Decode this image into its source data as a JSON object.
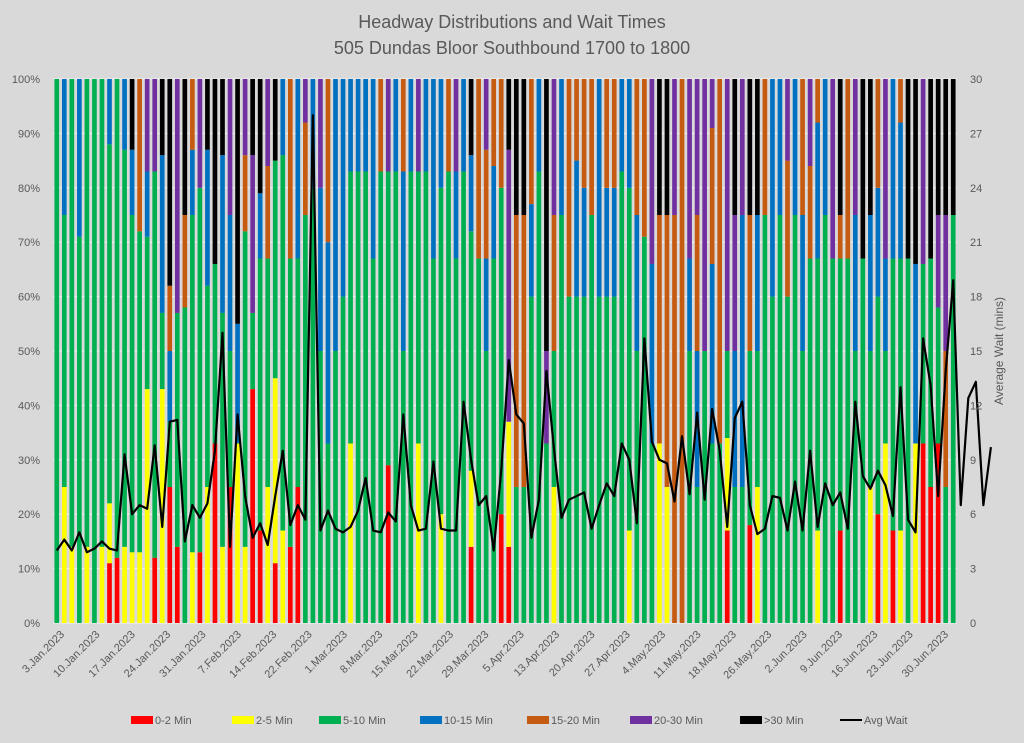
{
  "chart_data": {
    "type": "bar",
    "subtype": "stacked-100-percent-with-line-overlay",
    "title": "Headway Distributions and Wait Times",
    "subtitle": "505 Dundas  Bloor Southbound 1700 to 1800",
    "ylabel_left": "",
    "ylabel_right": "Average Wait (mins)",
    "ylim_left": [
      0,
      100
    ],
    "ylim_right": [
      0,
      30
    ],
    "yticks_left": [
      "0%",
      "10%",
      "20%",
      "30%",
      "40%",
      "50%",
      "60%",
      "70%",
      "80%",
      "90%",
      "100%"
    ],
    "yticks_right": [
      "0",
      "3",
      "6",
      "9",
      "12",
      "15",
      "18",
      "21",
      "24",
      "27",
      "30"
    ],
    "xtick_labels": [
      "3.Jan.2023",
      "10.Jan.2023",
      "17.Jan.2023",
      "24.Jan.2023",
      "31.Jan.2023",
      "7.Feb.2023",
      "14.Feb.2023",
      "22.Feb.2023",
      "1.Mar.2023",
      "8.Mar.2023",
      "15.Mar.2023",
      "22.Mar.2023",
      "29.Mar.2023",
      "5.Apr.2023",
      "13.Apr.2023",
      "20.Apr.2023",
      "27.Apr.2023",
      "4.May.2023",
      "11.May.2023",
      "18.May.2023",
      "26.May.2023",
      "2.Jun.2023",
      "9.Jun.2023",
      "16.Jun.2023",
      "23.Jun.2023",
      "30.Jun.2023"
    ],
    "grid": true,
    "legend_position": "bottom",
    "series_names": [
      "0-2 Min",
      "2-5 Min",
      "5-10 Min",
      "10-15 Min",
      "15-20 Min",
      "20-30 Min",
      ">30 Min"
    ],
    "series_colors": [
      "#ff0000",
      "#ffff00",
      "#00b050",
      "#0070c0",
      "#c55a11",
      "#7030a0",
      "#000000"
    ],
    "line_series": {
      "name": "Avg Wait",
      "color": "#000000"
    },
    "bars": [
      [
        0,
        0,
        100,
        0,
        0,
        0,
        0
      ],
      [
        0,
        25,
        50,
        25,
        0,
        0,
        0
      ],
      [
        0,
        14,
        86,
        0,
        0,
        0,
        0
      ],
      [
        0,
        0,
        71,
        29,
        0,
        0,
        0
      ],
      [
        0,
        14,
        86,
        0,
        0,
        0,
        0
      ],
      [
        0,
        0,
        100,
        0,
        0,
        0,
        0
      ],
      [
        0,
        14,
        86,
        0,
        0,
        0,
        0
      ],
      [
        11,
        11,
        66,
        12,
        0,
        0,
        0
      ],
      [
        12,
        0,
        88,
        0,
        0,
        0,
        0
      ],
      [
        0,
        14,
        73,
        13,
        0,
        0,
        0
      ],
      [
        0,
        13,
        62,
        12,
        0,
        0,
        13
      ],
      [
        0,
        13,
        59,
        0,
        28,
        0,
        0
      ],
      [
        0,
        43,
        28,
        12,
        0,
        17,
        0
      ],
      [
        12,
        0,
        71,
        0,
        0,
        17,
        0
      ],
      [
        0,
        43,
        14,
        29,
        0,
        0,
        14
      ],
      [
        25,
        0,
        12,
        13,
        12,
        0,
        38
      ],
      [
        14,
        0,
        43,
        0,
        0,
        43,
        0
      ],
      [
        0,
        0,
        58,
        0,
        17,
        0,
        25
      ],
      [
        0,
        13,
        62,
        12,
        13,
        0,
        0
      ],
      [
        13,
        0,
        67,
        0,
        0,
        20,
        0
      ],
      [
        0,
        25,
        37,
        25,
        0,
        0,
        13
      ],
      [
        33,
        0,
        33,
        0,
        0,
        0,
        34
      ],
      [
        0,
        14,
        43,
        29,
        0,
        0,
        14
      ],
      [
        25,
        0,
        25,
        25,
        0,
        25,
        0
      ],
      [
        0,
        33,
        0,
        22,
        0,
        0,
        45
      ],
      [
        0,
        14,
        58,
        0,
        14,
        14,
        0
      ],
      [
        43,
        0,
        14,
        0,
        0,
        29,
        14
      ],
      [
        17,
        0,
        50,
        12,
        0,
        0,
        21
      ],
      [
        0,
        25,
        42,
        0,
        17,
        16,
        0
      ],
      [
        11,
        34,
        40,
        0,
        0,
        0,
        15
      ],
      [
        0,
        17,
        69,
        14,
        0,
        0,
        0
      ],
      [
        14,
        0,
        53,
        0,
        33,
        0,
        0
      ],
      [
        25,
        0,
        42,
        33,
        0,
        0,
        0
      ],
      [
        0,
        0,
        75,
        0,
        17,
        8,
        0
      ],
      [
        0,
        0,
        80,
        20,
        0,
        0,
        0
      ],
      [
        0,
        0,
        50,
        30,
        0,
        20,
        0
      ],
      [
        0,
        0,
        33,
        37,
        30,
        0,
        0
      ],
      [
        0,
        0,
        50,
        50,
        0,
        0,
        0
      ],
      [
        0,
        0,
        60,
        40,
        0,
        0,
        0
      ],
      [
        0,
        33,
        50,
        17,
        0,
        0,
        0
      ],
      [
        0,
        0,
        83,
        17,
        0,
        0,
        0
      ],
      [
        0,
        0,
        83,
        17,
        0,
        0,
        0
      ],
      [
        0,
        0,
        67,
        33,
        0,
        0,
        0
      ],
      [
        0,
        0,
        83,
        0,
        17,
        0,
        0
      ],
      [
        29,
        0,
        54,
        0,
        0,
        17,
        0
      ],
      [
        0,
        0,
        83,
        17,
        0,
        0,
        0
      ],
      [
        0,
        0,
        50,
        33,
        17,
        0,
        0
      ],
      [
        0,
        0,
        83,
        17,
        0,
        0,
        0
      ],
      [
        0,
        33,
        50,
        0,
        0,
        17,
        0
      ],
      [
        0,
        0,
        83,
        17,
        0,
        0,
        0
      ],
      [
        0,
        0,
        67,
        33,
        0,
        0,
        0
      ],
      [
        0,
        20,
        60,
        20,
        0,
        0,
        0
      ],
      [
        0,
        0,
        83,
        0,
        17,
        0,
        0
      ],
      [
        0,
        0,
        67,
        16,
        0,
        17,
        0
      ],
      [
        0,
        0,
        83,
        17,
        0,
        0,
        0
      ],
      [
        14,
        14,
        44,
        14,
        0,
        0,
        14
      ],
      [
        0,
        0,
        67,
        0,
        33,
        0,
        0
      ],
      [
        0,
        0,
        50,
        17,
        20,
        13,
        0
      ],
      [
        0,
        0,
        67,
        17,
        16,
        0,
        0
      ],
      [
        20,
        0,
        60,
        0,
        20,
        0,
        0
      ],
      [
        14,
        23,
        0,
        0,
        0,
        50,
        13
      ],
      [
        0,
        0,
        25,
        0,
        50,
        0,
        25
      ],
      [
        0,
        0,
        25,
        0,
        50,
        0,
        25
      ],
      [
        0,
        0,
        60,
        17,
        23,
        0,
        0
      ],
      [
        0,
        0,
        83,
        17,
        0,
        0,
        0
      ],
      [
        0,
        0,
        33,
        0,
        0,
        17,
        50
      ],
      [
        0,
        25,
        25,
        0,
        25,
        25,
        0
      ],
      [
        0,
        0,
        75,
        25,
        0,
        0,
        0
      ],
      [
        0,
        0,
        60,
        0,
        40,
        0,
        0
      ],
      [
        0,
        0,
        60,
        25,
        15,
        0,
        0
      ],
      [
        0,
        0,
        60,
        20,
        20,
        0,
        0
      ],
      [
        0,
        0,
        75,
        0,
        25,
        0,
        0
      ],
      [
        0,
        0,
        60,
        40,
        0,
        0,
        0
      ],
      [
        0,
        0,
        60,
        20,
        20,
        0,
        0
      ],
      [
        0,
        0,
        60,
        20,
        20,
        0,
        0
      ],
      [
        0,
        0,
        83,
        17,
        0,
        0,
        0
      ],
      [
        0,
        17,
        63,
        20,
        0,
        0,
        0
      ],
      [
        0,
        0,
        50,
        25,
        25,
        0,
        0
      ],
      [
        0,
        0,
        71,
        0,
        29,
        0,
        0
      ],
      [
        0,
        0,
        33,
        33,
        0,
        34,
        0
      ],
      [
        0,
        33,
        0,
        0,
        42,
        0,
        25
      ],
      [
        0,
        25,
        0,
        0,
        50,
        0,
        25
      ],
      [
        0,
        0,
        0,
        0,
        75,
        25,
        0
      ],
      [
        0,
        0,
        0,
        0,
        100,
        0,
        0
      ],
      [
        0,
        0,
        50,
        17,
        0,
        33,
        0
      ],
      [
        0,
        0,
        25,
        25,
        25,
        25,
        0
      ],
      [
        0,
        0,
        50,
        0,
        0,
        50,
        0
      ],
      [
        0,
        0,
        33,
        33,
        25,
        9,
        0
      ],
      [
        0,
        0,
        33,
        0,
        67,
        0,
        0
      ],
      [
        17,
        17,
        16,
        0,
        0,
        50,
        0
      ],
      [
        0,
        0,
        25,
        25,
        0,
        25,
        25
      ],
      [
        0,
        0,
        25,
        50,
        0,
        25,
        0
      ],
      [
        18,
        0,
        32,
        0,
        25,
        0,
        25
      ],
      [
        0,
        25,
        25,
        25,
        0,
        0,
        25
      ],
      [
        0,
        0,
        75,
        0,
        25,
        0,
        0
      ],
      [
        0,
        0,
        60,
        40,
        0,
        0,
        0
      ],
      [
        0,
        0,
        75,
        25,
        0,
        0,
        0
      ],
      [
        0,
        0,
        60,
        0,
        25,
        15,
        0
      ],
      [
        0,
        0,
        75,
        25,
        0,
        0,
        0
      ],
      [
        0,
        0,
        50,
        25,
        25,
        0,
        0
      ],
      [
        0,
        0,
        67,
        0,
        17,
        16,
        0
      ],
      [
        0,
        17,
        50,
        25,
        8,
        0,
        0
      ],
      [
        0,
        0,
        75,
        25,
        0,
        0,
        0
      ],
      [
        0,
        0,
        67,
        0,
        0,
        33,
        0
      ],
      [
        17,
        0,
        50,
        0,
        8,
        0,
        25
      ],
      [
        0,
        0,
        67,
        0,
        33,
        0,
        0
      ],
      [
        0,
        0,
        50,
        25,
        0,
        25,
        0
      ],
      [
        0,
        0,
        67,
        0,
        0,
        0,
        33
      ],
      [
        0,
        25,
        25,
        25,
        0,
        0,
        25
      ],
      [
        20,
        0,
        40,
        20,
        20,
        0,
        0
      ],
      [
        0,
        33,
        17,
        17,
        0,
        33,
        0
      ],
      [
        17,
        0,
        50,
        33,
        0,
        0,
        0
      ],
      [
        0,
        17,
        50,
        25,
        8,
        0,
        0
      ],
      [
        0,
        0,
        67,
        0,
        0,
        0,
        33
      ],
      [
        0,
        33,
        0,
        33,
        0,
        0,
        34
      ],
      [
        33,
        0,
        33,
        0,
        0,
        34,
        0
      ],
      [
        25,
        0,
        42,
        0,
        0,
        0,
        33
      ],
      [
        33,
        0,
        25,
        0,
        0,
        17,
        25
      ],
      [
        0,
        0,
        25,
        0,
        25,
        25,
        25
      ],
      [
        0,
        0,
        75,
        0,
        0,
        0,
        25
      ]
    ],
    "avg_wait": [
      4.0,
      4.6,
      4.0,
      5.0,
      3.9,
      4.1,
      4.5,
      4.1,
      4.0,
      9.3,
      6.0,
      6.5,
      6.3,
      9.8,
      5.3,
      11.1,
      11.2,
      4.5,
      6.5,
      5.8,
      6.6,
      9.5,
      16.0,
      4.2,
      11.5,
      7.0,
      4.7,
      5.5,
      4.3,
      7.0,
      9.5,
      5.4,
      6.5,
      5.7,
      28.0,
      5.1,
      6.2,
      5.2,
      5.0,
      5.3,
      6.2,
      8.0,
      5.1,
      5.0,
      6.1,
      5.6,
      11.5,
      6.5,
      5.1,
      5.2,
      8.9,
      5.2,
      5.1,
      5.1,
      12.2,
      9.0,
      6.5,
      7.0,
      4.0,
      8.4,
      14.5,
      11.5,
      11.0,
      4.7,
      6.8,
      13.9,
      9.6,
      5.8,
      6.8,
      7.0,
      7.2,
      5.2,
      6.5,
      7.7,
      7.0,
      9.9,
      9.0,
      5.5,
      15.7,
      10.0,
      9.0,
      8.8,
      6.7,
      10.3,
      7.1,
      11.6,
      6.8,
      11.8,
      9.5,
      5.3,
      11.3,
      12.2,
      6.5,
      4.9,
      5.2,
      7.0,
      6.9,
      5.1,
      7.8,
      5.1,
      9.5,
      5.3,
      7.7,
      6.5,
      7.2,
      5.2,
      12.2,
      8.1,
      7.4,
      8.4,
      7.6,
      5.9,
      13.0,
      5.7,
      5.0,
      15.7,
      13.1,
      7.0,
      13.9,
      18.9,
      6.5,
      12.4,
      13.3,
      6.5,
      9.7
    ]
  }
}
